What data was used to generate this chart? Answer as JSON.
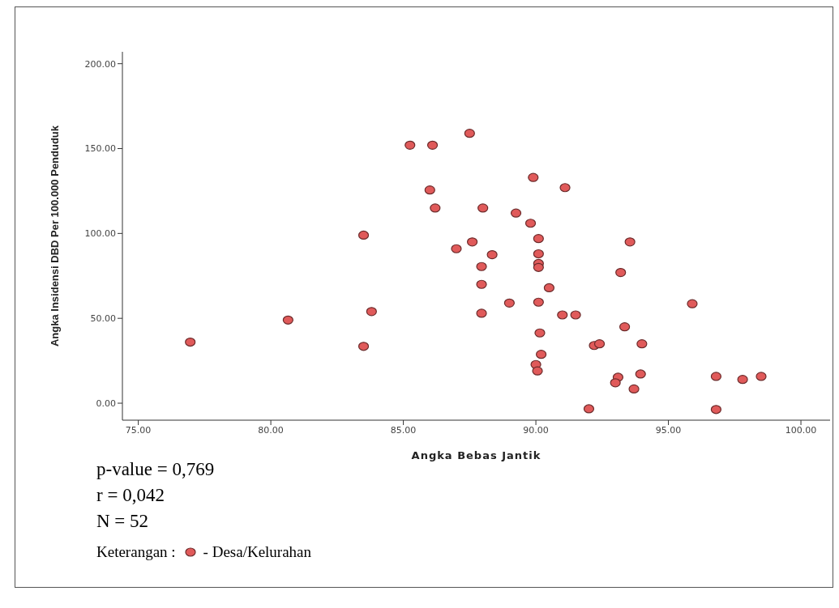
{
  "chart_data": {
    "type": "scatter",
    "xlabel": "Angka Bebas Jantik",
    "ylabel": "Angka Insidensi DBD Per 100.000 Penduduk",
    "xlim": [
      74.4,
      101.1
    ],
    "ylim": [
      -10,
      207
    ],
    "xticks": [
      {
        "value": 75,
        "label": "75.00"
      },
      {
        "value": 80,
        "label": "80.00"
      },
      {
        "value": 85,
        "label": "85.00"
      },
      {
        "value": 90,
        "label": "90.00"
      },
      {
        "value": 95,
        "label": "95.00"
      },
      {
        "value": 100,
        "label": "100.00"
      }
    ],
    "yticks": [
      {
        "value": 0,
        "label": "0.00"
      },
      {
        "value": 50,
        "label": "50.00"
      },
      {
        "value": 100,
        "label": "100.00"
      },
      {
        "value": 150,
        "label": "150.00"
      },
      {
        "value": 200,
        "label": "200.00"
      }
    ],
    "grid": false,
    "marker": "circle",
    "legend": "bottom left",
    "legend_title": "Keterangan :",
    "annotations": [
      "p-value = 0,769",
      "r = 0,042",
      "N = 52"
    ],
    "series": [
      {
        "name": "- Desa/Kelurahan",
        "color": "#e05a5a",
        "x": [
          85.25,
          86.1,
          87.5,
          86.0,
          86.2,
          88.0,
          83.5,
          87.0,
          87.6,
          87.95,
          87.95,
          83.8,
          87.95,
          80.65,
          76.96,
          83.5,
          89.9,
          91.1,
          89.25,
          89.8,
          90.1,
          93.55,
          88.35,
          90.1,
          90.1,
          90.1,
          93.2,
          90.5,
          89.0,
          90.1,
          95.9,
          91.0,
          91.5,
          93.35,
          90.15,
          92.2,
          92.4,
          94.0,
          90.2,
          90.0,
          90.06,
          93.95,
          93.1,
          93.0,
          96.8,
          97.8,
          98.5,
          93.7,
          92.0,
          96.8
        ],
        "values": [
          152,
          152,
          159,
          125.6,
          115,
          115,
          99,
          91,
          95,
          80.5,
          70,
          54,
          53,
          49,
          36,
          33.5,
          133,
          127,
          112,
          106,
          97,
          95,
          87.5,
          88,
          82.3,
          80,
          77,
          68,
          59,
          59.5,
          58.6,
          52,
          52,
          45,
          41.4,
          34,
          35,
          35,
          28.8,
          22.8,
          19,
          17.2,
          15.3,
          12,
          15.8,
          14,
          15.8,
          8.4,
          -3.3,
          -3.7
        ]
      }
    ]
  }
}
